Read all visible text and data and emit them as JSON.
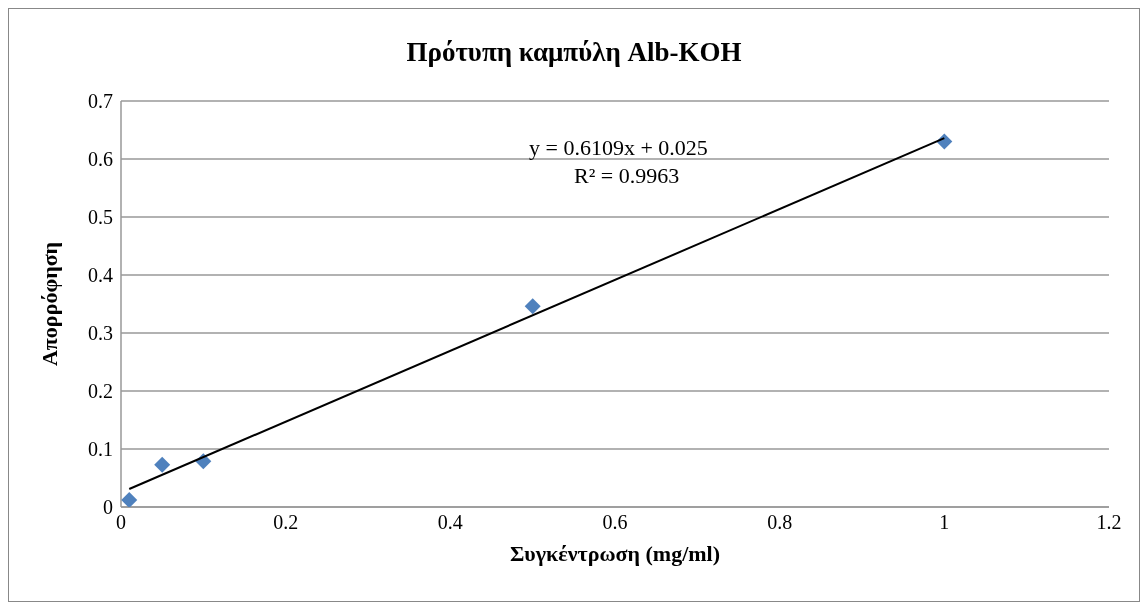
{
  "chart_data": {
    "type": "scatter",
    "title": "Πρότυπη καμπύλη Alb-KOH",
    "xlabel": "Συγκέντρωση (mg/ml)",
    "ylabel": "Απορρόφηση",
    "xlim": [
      0,
      1.2
    ],
    "xticks": [
      0,
      0.2,
      0.4,
      0.6,
      0.8,
      1,
      1.2
    ],
    "ylim": [
      0,
      0.7
    ],
    "yticks": [
      0,
      0.1,
      0.2,
      0.3,
      0.4,
      0.5,
      0.6,
      0.7
    ],
    "grid": "y",
    "legend": false,
    "series": [
      {
        "marker": "diamond",
        "color": "#4f81bd",
        "x": [
          0.01,
          0.05,
          0.1,
          0.5,
          1
        ],
        "values": [
          0.012,
          0.073,
          0.079,
          0.346,
          0.63
        ]
      },
      {
        "type": "line",
        "marker": "none",
        "color": "#000000",
        "x": [
          0.01,
          1
        ],
        "values": [
          0.031,
          0.636
        ]
      }
    ],
    "annotations": [
      "y = 0.6109x + 0.025",
      "R² = 0.9963"
    ]
  }
}
